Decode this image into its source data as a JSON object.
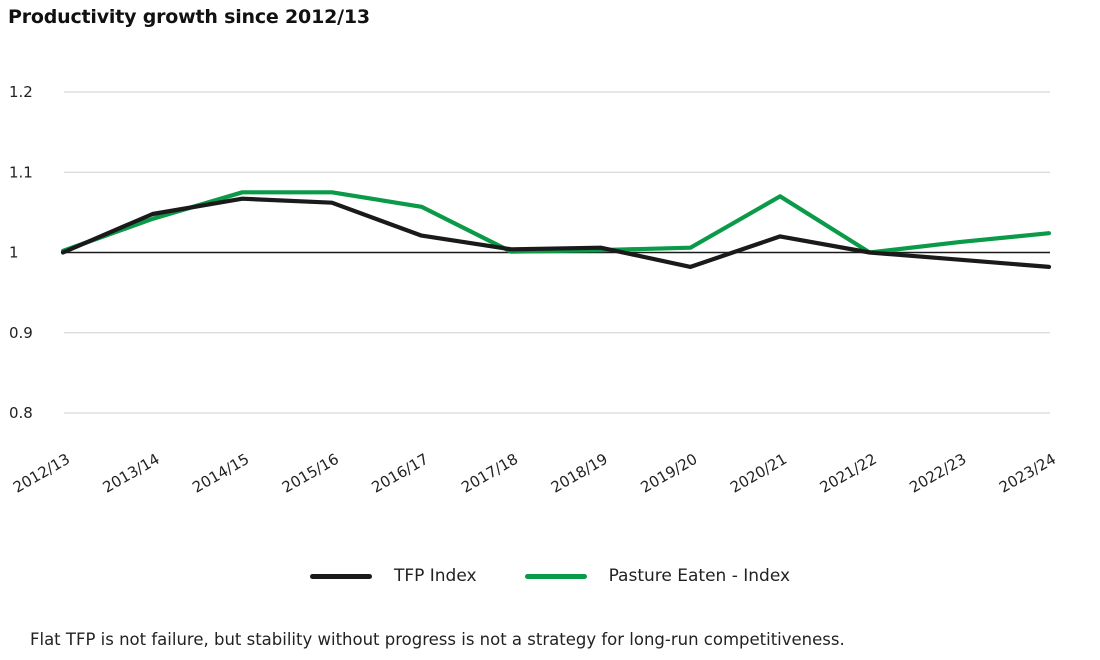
{
  "chart_data": {
    "type": "line",
    "title": "Productivity growth since 2012/13",
    "xlabel": "",
    "ylabel": "",
    "categories": [
      "2012/13",
      "2013/14",
      "2014/15",
      "2015/16",
      "2016/17",
      "2017/18",
      "2018/19",
      "2019/20",
      "2020/21",
      "2021/22",
      "2022/23",
      "2023/24"
    ],
    "ylim": [
      0.8,
      1.2
    ],
    "yticks": [
      0.8,
      0.9,
      1,
      1.1,
      1.2
    ],
    "ytick_labels": [
      "0.8",
      "0.9",
      "1",
      "1.1",
      "1.2"
    ],
    "grid": true,
    "reference_line": 1,
    "legend_position": "bottom",
    "series": [
      {
        "name": "TFP Index",
        "color": "#1a1a1a",
        "values": [
          1.0,
          1.048,
          1.067,
          1.062,
          1.021,
          1.004,
          1.006,
          0.982,
          1.02,
          1.0,
          0.991,
          0.982
        ]
      },
      {
        "name": "Pasture Eaten - Index",
        "color": "#0a9a48",
        "values": [
          1.002,
          1.042,
          1.075,
          1.075,
          1.057,
          1.001,
          1.003,
          1.006,
          1.07,
          1.0,
          1.013,
          1.024
        ]
      }
    ]
  },
  "footnote": "Flat TFP is not failure, but stability without progress is not a strategy for long-run competitiveness.",
  "colors": {
    "grid": "#cfcfcf",
    "baseline": "#1a1a1a",
    "tfp": "#1a1a1a",
    "pasture": "#0a9a48"
  }
}
